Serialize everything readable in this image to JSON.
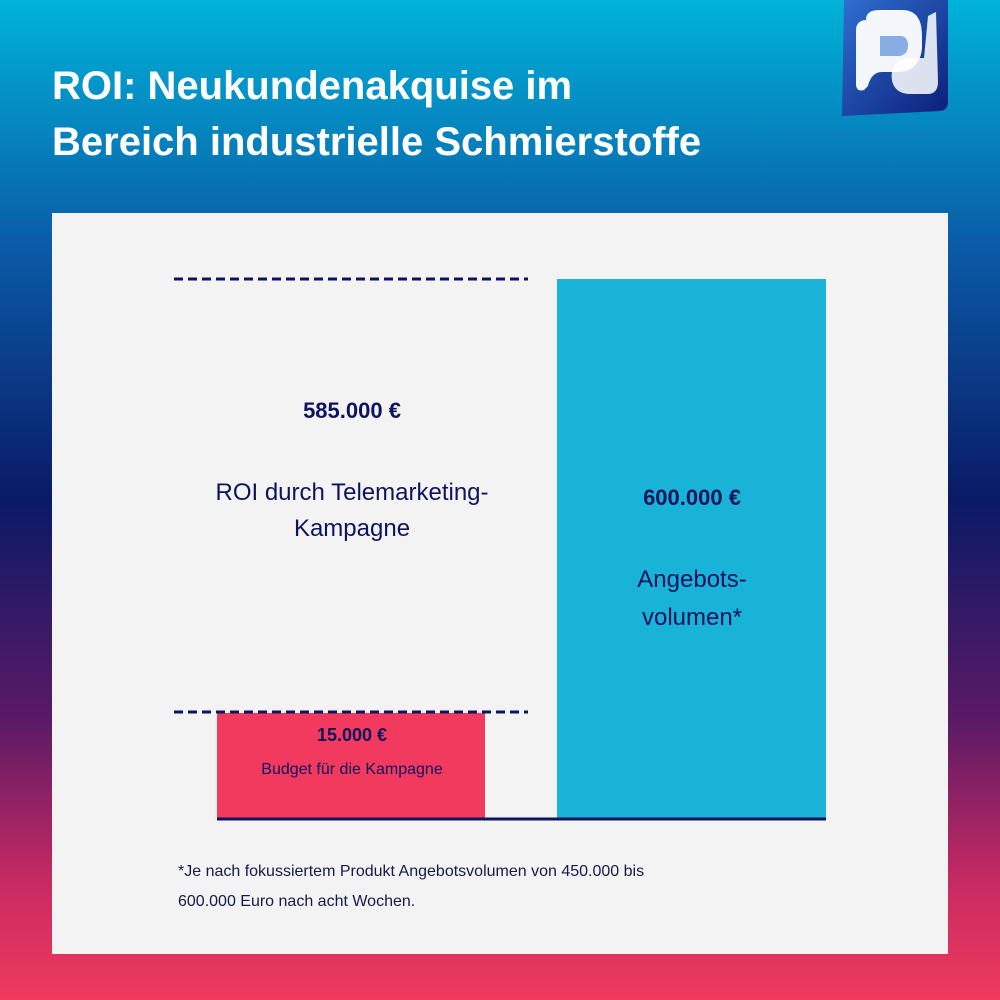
{
  "title": {
    "line1": "ROI: Neukundenakquise im",
    "line2": "Bereich industrielle Schmierstoffe"
  },
  "logo": {
    "icon": "pd-logo-icon"
  },
  "colors": {
    "budget_bar": "#f2395e",
    "offer_bar": "#1ab3d8",
    "text_dark": "#0d145e",
    "panel_bg": "#f3f3f4"
  },
  "chart_data": {
    "type": "bar",
    "categories": [
      "Budget für die Kampagne",
      "Angebotsvolumen*"
    ],
    "values": [
      15000,
      600000
    ],
    "ylim": [
      0,
      600000
    ],
    "grid": false,
    "annotations": {
      "roi_value": "585.000 €",
      "roi_label": "ROI durch Telemarketing-Kampagne",
      "roi_range": [
        15000,
        600000
      ]
    },
    "labels": {
      "budget_value": "15.000 €",
      "budget_label": "Budget für die Kampagne",
      "offer_value": "600.000 €",
      "offer_label": "Angebots-volumen*"
    }
  },
  "footnote": {
    "line1": "*Je nach fokussiertem Produkt Angebotsvolumen von 450.000 bis",
    "line2": "600.000 Euro nach acht Wochen."
  }
}
